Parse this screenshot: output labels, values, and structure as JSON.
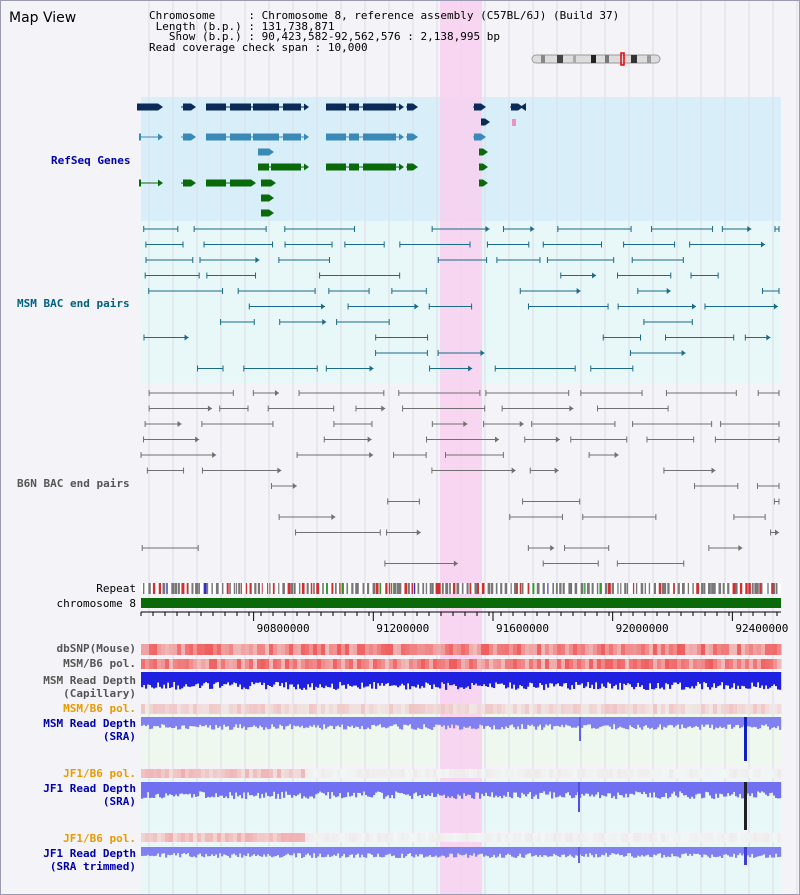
{
  "title": "Map View",
  "info": {
    "chromosome_label": "Chromosome",
    "chromosome_value": "Chromosome 8, reference assembly (C57BL/6J) (Build 37)",
    "length_label": "Length (b.p.)",
    "length_value": "131,738,871",
    "show_label": "Show (b.p.)",
    "show_value": "90,423,582-92,562,576 : 2,138,995 bp",
    "coverage_label": "Read coverage check span",
    "coverage_value": "10,000"
  },
  "tracks": {
    "refseq": "RefSeq Genes",
    "msm_bac": "MSM BAC end pairs",
    "b6n_bac": "B6N BAC end pairs",
    "repeat": "Repeat",
    "chromosome": "chromosome 8",
    "dbsnp": "dbSNP(Mouse)",
    "msm_b6_pol": "MSM/B6 pol.",
    "msm_depth_cap_1": "MSM Read Depth",
    "msm_depth_cap_2": "(Capillary)",
    "msm_b6_pol_2": "MSM/B6 pol.",
    "msm_depth_sra_1": "MSM Read Depth",
    "msm_depth_sra_2": "(SRA)",
    "jf1_pol": "JF1/B6 pol.",
    "jf1_depth_1": "JF1 Read Depth",
    "jf1_depth_2": "(SRA)",
    "jf1_pol_2": "JF1/B6 pol.",
    "jf1_trim_1": "JF1 Read Depth",
    "jf1_trim_2": "(SRA trimmed)"
  },
  "axis": {
    "ticks": [
      90800000,
      91200000,
      91600000,
      92000000,
      92400000
    ],
    "range": [
      90423582,
      92562576
    ]
  },
  "colors": {
    "refseq_dark": "#0a2a5a",
    "refseq_mid": "#3a8ab8",
    "refseq_green": "#0a6a0a",
    "msm_bac": "#1a6a88",
    "b6n_bac": "#707070",
    "highlight": "#f8d0f0",
    "chromosome": "#0a6a0a",
    "depth": "#3030e0",
    "depth_light": "#7a7af0"
  }
}
